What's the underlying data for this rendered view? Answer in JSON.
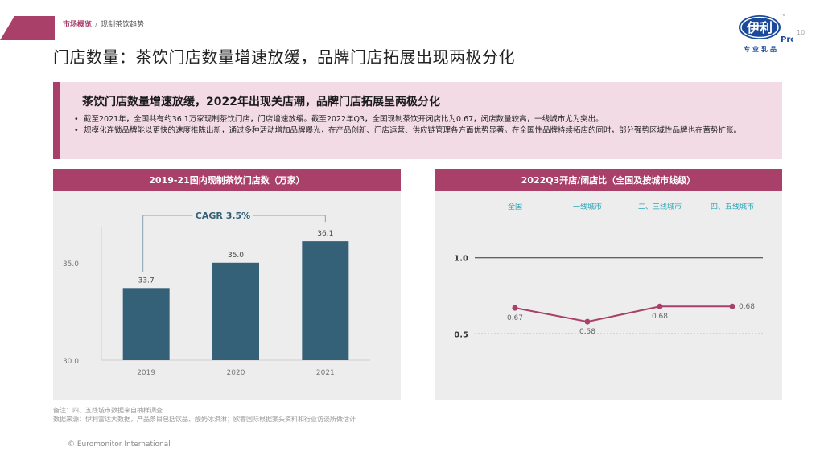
{
  "breadcrumb": {
    "section": "市场概览",
    "separator": "/",
    "current": "现制茶饮趋势"
  },
  "page_title": "门店数量：茶饮门店数量增速放缓，品牌门店拓展出现两极分化",
  "page_number": "10",
  "logo": {
    "brand": "伊利",
    "sub": "Pro",
    "tagline": "专业乳品"
  },
  "summary": {
    "heading": "茶饮门店数量增速放缓，2022年出现关店潮，品牌门店拓展呈两极分化",
    "bullets": [
      "截至2021年，全国共有约36.1万家现制茶饮门店，门店增速放缓。截至2022年Q3，全国现制茶饮开闭店比为0.67，闭店数量较高，一线城市尤为突出。",
      "规模化连锁品牌能以更快的速度推陈出新，通过多种活动增加品牌曝光，在产品创新、门店运营、供应链管理各方面优势显著。在全国性品牌持续拓店的同时，部分强势区域性品牌也在蓄势扩张。"
    ]
  },
  "colors": {
    "accent": "#a8406a",
    "bar": "#346178",
    "panel_bg": "#ededed",
    "summary_bg": "#f3dbe5"
  },
  "chart_data": [
    {
      "type": "bar",
      "title": "2019-21国内现制茶饮门店数（万家）",
      "categories": [
        "2019",
        "2020",
        "2021"
      ],
      "values": [
        33.7,
        35.0,
        36.1
      ],
      "data_labels": [
        "33.7",
        "35.0",
        "36.1"
      ],
      "ylim": [
        30,
        36.6
      ],
      "yticks": [
        30.0,
        35.0
      ],
      "ytick_labels": [
        "30.0",
        "35.0"
      ],
      "annotation": "CAGR 3.5%",
      "grid": false
    },
    {
      "type": "line",
      "title": "2022Q3开店/闭店比（全国及按城市线级）",
      "categories": [
        "全国",
        "一线城市",
        "二、三线城市",
        "四、五线城市"
      ],
      "values": [
        0.67,
        0.58,
        0.68,
        0.68
      ],
      "data_labels": [
        "0.67",
        "0.58",
        "0.68",
        "0.68"
      ],
      "reference_lines": [
        {
          "value": 1.0,
          "label": "1.0",
          "style": "solid"
        },
        {
          "value": 0.5,
          "label": "0.5",
          "style": "dashed"
        }
      ],
      "ylim": [
        0.38,
        1.12
      ],
      "legend": "top",
      "grid": false
    }
  ],
  "footnotes": {
    "note": "备注：四、五线城市数据来自抽样调查",
    "source": "数据来源：伊利雷达大数据，产品条目包括饮品、酸奶冰淇淋；欧睿国际根据案头资料和行业访谈所做估计"
  },
  "copyright": "© Euromonitor International"
}
